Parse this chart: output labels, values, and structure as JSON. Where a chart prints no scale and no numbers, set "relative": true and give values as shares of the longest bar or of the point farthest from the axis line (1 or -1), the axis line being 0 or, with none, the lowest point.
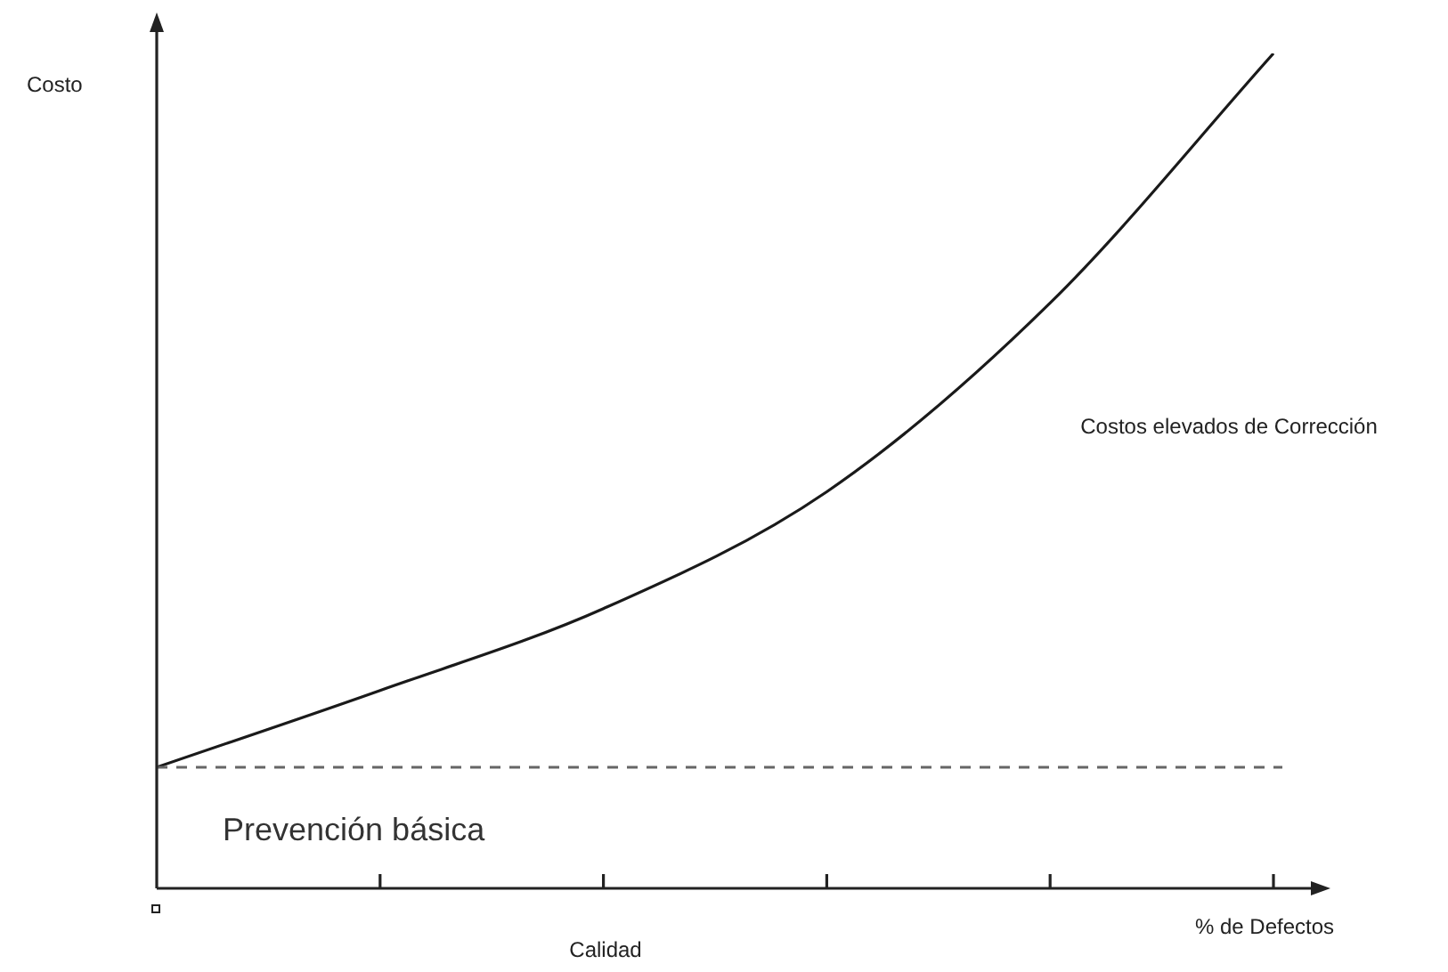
{
  "chart_data": {
    "type": "line",
    "relative": true,
    "xlabel": "Calidad",
    "ylabel": "Costo",
    "categories": [
      null,
      null,
      null,
      null,
      null,
      null
    ],
    "series": [
      {
        "color": "#1a1a1a",
        "values": [
          0.145,
          0.237,
          0.335,
          0.475,
          0.701,
          1
        ]
      }
    ],
    "ref_lines": [
      {
        "axis": "y",
        "value": 0.145,
        "label": "Prevención básica",
        "color": "#666666",
        "line_style": "dashed"
      }
    ],
    "annotations": [
      "Costos elevados de Corrección",
      "% de Defectos"
    ],
    "legend": false,
    "marker": "none",
    "line_style": "solid"
  }
}
